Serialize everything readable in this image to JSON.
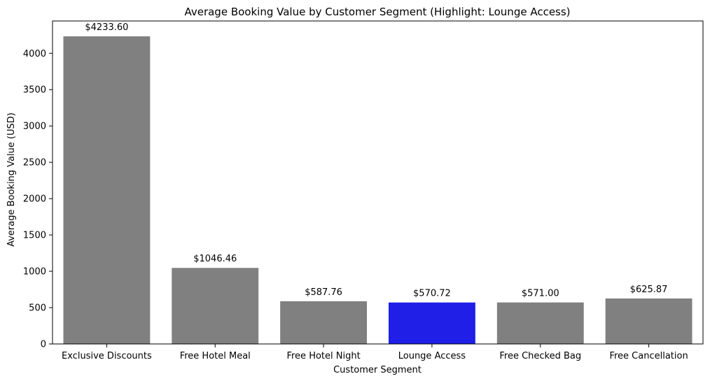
{
  "chart_data": {
    "type": "bar",
    "title": "Average Booking Value by Customer Segment (Highlight: Lounge Access)",
    "xlabel": "Customer Segment",
    "ylabel": "Average Booking Value (USD)",
    "categories": [
      "Exclusive Discounts",
      "Free Hotel Meal",
      "Free Hotel Night",
      "Lounge Access",
      "Free Checked Bag",
      "Free Cancellation"
    ],
    "values": [
      4233.6,
      1046.46,
      587.76,
      570.72,
      571.0,
      625.87
    ],
    "value_labels": [
      "$4233.60",
      "$1046.46",
      "$587.76",
      "$570.72",
      "$571.00",
      "$625.87"
    ],
    "highlight": "Lounge Access",
    "colors": {
      "default": "#808080",
      "highlight": "#1f1fe8"
    },
    "yticks": [
      0,
      500,
      1000,
      1500,
      2000,
      2500,
      3000,
      3500,
      4000
    ],
    "ytick_labels": [
      "0",
      "500",
      "1000",
      "1500",
      "2000",
      "2500",
      "3000",
      "3500",
      "4000"
    ],
    "ylim": [
      0,
      4445
    ],
    "grid": false,
    "legend": "none"
  }
}
